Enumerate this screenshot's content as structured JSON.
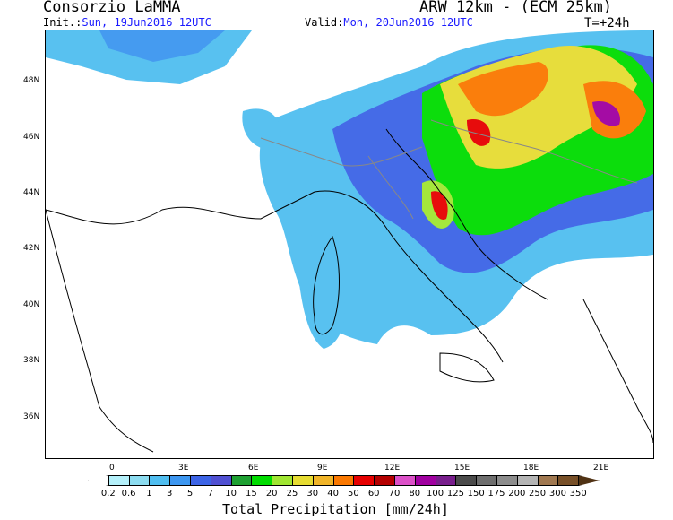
{
  "header": {
    "organization": "Consorzio LaMMA",
    "model": "ARW 12km - (ECM 25km)",
    "init_label": "Init.:",
    "init_value": "Sun, 19Jun2016 12UTC",
    "valid_label": "Valid:",
    "valid_value": "Mon, 20Jun2016 12UTC",
    "lead_time": "T=+24h"
  },
  "map": {
    "lat_labels": [
      "48N",
      "46N",
      "44N",
      "42N",
      "40N",
      "38N",
      "36N"
    ],
    "lon_labels": [
      "0",
      "3E",
      "6E",
      "9E",
      "12E",
      "15E",
      "18E",
      "21E"
    ]
  },
  "legend": {
    "title": "Total Precipitation [mm/24h]",
    "labels": [
      "0.2",
      "0.6",
      "1",
      "3",
      "5",
      "7",
      "10",
      "15",
      "20",
      "25",
      "30",
      "40",
      "50",
      "60",
      "70",
      "80",
      "100",
      "125",
      "150",
      "175",
      "200",
      "250",
      "300",
      "350"
    ],
    "colors": [
      "#ffffff",
      "#b4f0fa",
      "#8cdcf0",
      "#50bef0",
      "#3c96f0",
      "#3c64e6",
      "#5050d2",
      "#1ea032",
      "#00dc00",
      "#a0e632",
      "#e6dc32",
      "#f0b428",
      "#fa7800",
      "#e60000",
      "#b40000",
      "#dc50c8",
      "#a000a0",
      "#781e8c",
      "#4b4b4b",
      "#6e6e6e",
      "#8c8c8c",
      "#b4b4b4",
      "#a07850",
      "#785028",
      "#503214"
    ]
  }
}
